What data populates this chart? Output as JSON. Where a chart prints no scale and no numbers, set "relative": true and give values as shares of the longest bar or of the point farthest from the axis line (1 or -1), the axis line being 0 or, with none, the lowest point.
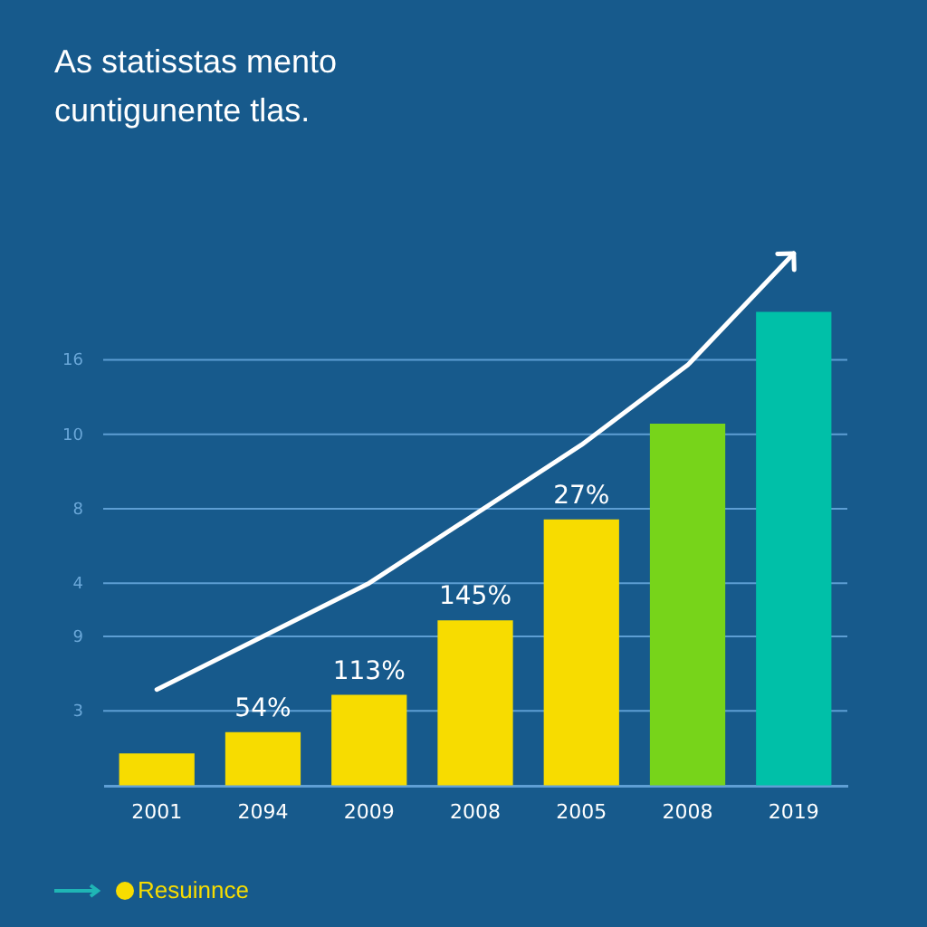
{
  "chart_data": {
    "type": "bar",
    "title": "As statisstas mento cuntigunente tlas.",
    "categories": [
      "2001",
      "2094",
      "2009",
      "2008",
      "2005",
      "2008",
      "2019"
    ],
    "relative": true,
    "series": [
      {
        "name": "Resuinnce",
        "color": "#f7dc00",
        "colors": [
          "#f7dc00",
          "#f7dc00",
          "#f7dc00",
          "#f7dc00",
          "#f7dc00",
          "#77d41a",
          "#00c0a8"
        ],
        "values": [
          0.06,
          0.1,
          0.17,
          0.31,
          0.5,
          0.68,
          0.89
        ]
      },
      {
        "type": "line",
        "color": "#ffffff",
        "values": [
          0.18,
          0.28,
          0.38,
          0.51,
          0.64,
          0.79,
          1
        ]
      }
    ],
    "ref_lines": [
      {
        "axis": "y",
        "value": 0.14
      },
      {
        "axis": "y",
        "value": 0.28
      },
      {
        "axis": "y",
        "value": 0.38
      },
      {
        "axis": "y",
        "value": 0.52
      },
      {
        "axis": "y",
        "value": 0.66
      },
      {
        "axis": "y",
        "value": 0.8
      }
    ],
    "annotations": [
      "3",
      "9",
      "4",
      "8",
      "10",
      "16",
      {
        "text": "54%",
        "x": "2094",
        "y": 0.1
      },
      {
        "text": "113%",
        "x": "2009",
        "y": 0.17
      },
      {
        "text": "145%",
        "x": "2008",
        "y": 0.31
      },
      {
        "text": "27%",
        "x": "2005",
        "y": 0.5
      }
    ],
    "legend": "bottom left"
  }
}
